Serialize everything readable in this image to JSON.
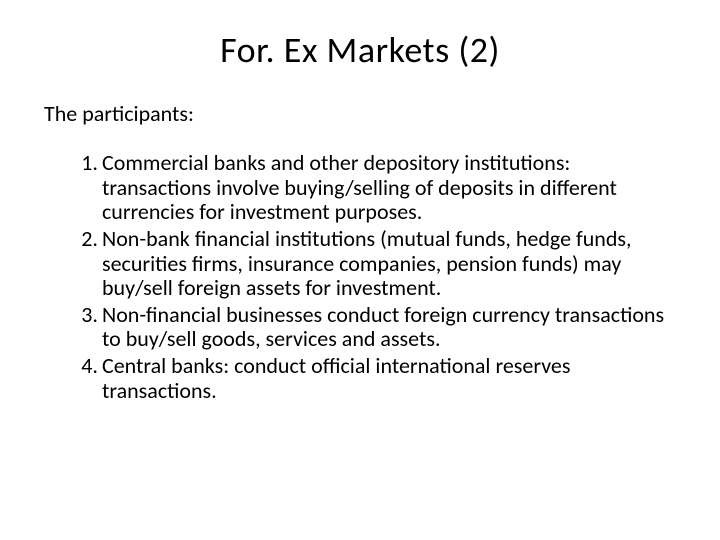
{
  "background_color": "#ffffff",
  "text_color": "#000000",
  "font_family": "Calibri, 'Segoe UI', Arial, sans-serif",
  "title": {
    "text": "For. Ex Markets (2)",
    "fontsize": 36,
    "align": "center"
  },
  "subtitle": {
    "text": "The participants:",
    "fontsize": 22
  },
  "list": {
    "type": "ordered",
    "fontsize": 22,
    "line_height": 1.12,
    "items": [
      {
        "number": "1.",
        "text": "Commercial banks and other depository institutions: transactions involve buying/selling of deposits in different currencies for investment purposes."
      },
      {
        "number": "2.",
        "text": "Non-bank financial institutions (mutual funds, hedge funds, securities firms, insurance companies, pension funds) may buy/sell foreign assets for investment."
      },
      {
        "number": "3.",
        "text": "Non-financial businesses conduct foreign currency transactions to buy/sell goods, services and assets."
      },
      {
        "number": "4.",
        "text": "Central banks: conduct official international reserves transactions."
      }
    ]
  }
}
